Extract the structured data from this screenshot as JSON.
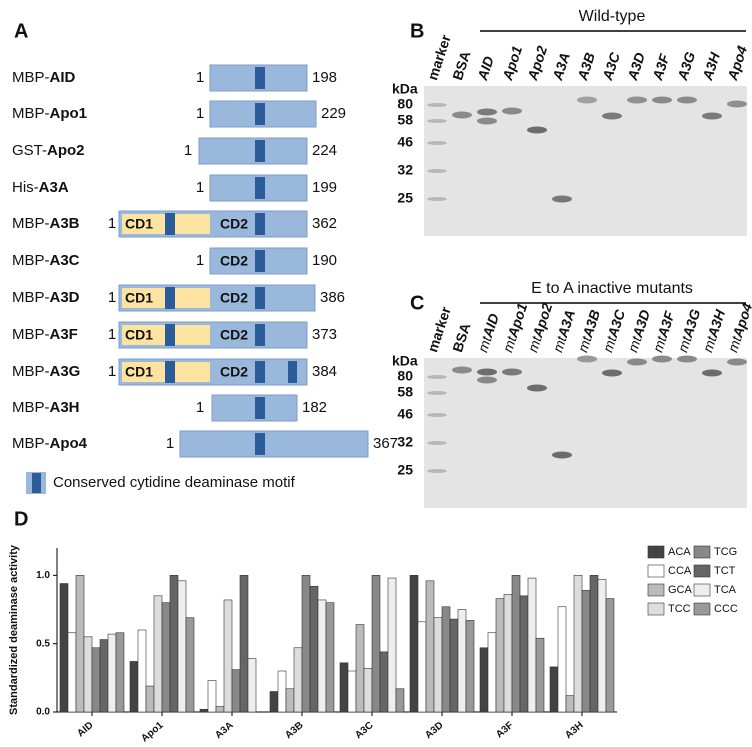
{
  "panel_a": {
    "label": "A",
    "constructs": [
      {
        "tag": "MBP-",
        "name": "AID",
        "start": 1,
        "end": 198,
        "domains": []
      },
      {
        "tag": "MBP-",
        "name": "Apo1",
        "start": 1,
        "end": 229,
        "domains": []
      },
      {
        "tag": "GST-",
        "name": "Apo2",
        "start": 1,
        "end": 224,
        "domains": []
      },
      {
        "tag": "His-",
        "name": "A3A",
        "start": 1,
        "end": 199,
        "domains": []
      },
      {
        "tag": "MBP-",
        "name": "A3B",
        "start": 1,
        "end": 362,
        "domains": [
          "CD1",
          "CD2"
        ]
      },
      {
        "tag": "MBP-",
        "name": "A3C",
        "start": 1,
        "end": 190,
        "domains": [
          "CD2"
        ]
      },
      {
        "tag": "MBP-",
        "name": "A3D",
        "start": 1,
        "end": 386,
        "domains": [
          "CD1",
          "CD2"
        ]
      },
      {
        "tag": "MBP-",
        "name": "A3F",
        "start": 1,
        "end": 373,
        "domains": [
          "CD1",
          "CD2"
        ]
      },
      {
        "tag": "MBP-",
        "name": "A3G",
        "start": 1,
        "end": 384,
        "domains": [
          "CD1",
          "CD2"
        ]
      },
      {
        "tag": "MBP-",
        "name": "A3H",
        "start": 1,
        "end": 182,
        "domains": []
      },
      {
        "tag": "MBP-",
        "name": "Apo4",
        "start": 1,
        "end": 367,
        "domains": []
      }
    ],
    "legend": "Conserved cytidine deaminase motif"
  },
  "panel_b": {
    "label": "B",
    "header": "Wild-type",
    "unit": "kDa",
    "markers": [
      80,
      58,
      46,
      32,
      25
    ],
    "lanes": [
      "marker",
      "BSA",
      "AID",
      "Apo1",
      "Apo2",
      "A3A",
      "A3B",
      "A3C",
      "A3D",
      "A3F",
      "A3G",
      "A3H",
      "Apo4"
    ]
  },
  "panel_c": {
    "label": "C",
    "header": "E to A inactive mutants",
    "unit": "kDa",
    "markers": [
      80,
      58,
      46,
      32,
      25
    ],
    "lanes": [
      "marker",
      "BSA",
      {
        "prefix": "mt",
        "name": "AID"
      },
      {
        "prefix": "mt",
        "name": "Apo1"
      },
      {
        "prefix": "mt",
        "name": "Apo2"
      },
      {
        "prefix": "mt",
        "name": "A3A"
      },
      {
        "prefix": "mt",
        "name": "A3B"
      },
      {
        "prefix": "mt",
        "name": "A3C"
      },
      {
        "prefix": "mt",
        "name": "A3D"
      },
      {
        "prefix": "mt",
        "name": "A3F"
      },
      {
        "prefix": "mt",
        "name": "A3G"
      },
      {
        "prefix": "mt",
        "name": "A3H"
      },
      {
        "prefix": "mt",
        "name": "Apo4"
      }
    ]
  },
  "chart_data": {
    "type": "bar",
    "label": "D",
    "ylabel": "Standardized deaminase activity",
    "categories": [
      "AID",
      "Apo1",
      "A3A",
      "A3B",
      "A3C",
      "A3D",
      "A3F",
      "A3H"
    ],
    "series": [
      {
        "name": "ACA",
        "color": "#444444",
        "values": [
          0.94,
          0.37,
          0.02,
          0.15,
          0.36,
          1.0,
          0.47,
          0.33
        ]
      },
      {
        "name": "CCA",
        "color": "#ffffff",
        "values": [
          0.58,
          0.6,
          0.23,
          0.3,
          0.3,
          0.66,
          0.58,
          0.77
        ]
      },
      {
        "name": "GCA",
        "color": "#bbbbbb",
        "values": [
          1.0,
          0.19,
          0.04,
          0.17,
          0.64,
          0.96,
          0.83,
          0.12
        ]
      },
      {
        "name": "TCC",
        "color": "#dddddd",
        "values": [
          0.55,
          0.85,
          0.82,
          0.47,
          0.32,
          0.69,
          0.86,
          1.0
        ]
      },
      {
        "name": "TCG",
        "color": "#888888",
        "values": [
          0.47,
          0.8,
          0.31,
          1.0,
          1.0,
          0.77,
          1.0,
          0.89
        ]
      },
      {
        "name": "TCT",
        "color": "#666666",
        "values": [
          0.53,
          1.0,
          1.0,
          0.92,
          0.44,
          0.68,
          0.85,
          1.0
        ]
      },
      {
        "name": "TCA",
        "color": "#eeeeee",
        "values": [
          0.57,
          0.96,
          0.39,
          0.82,
          0.98,
          0.75,
          0.98,
          0.97
        ]
      },
      {
        "name": "CCC",
        "color": "#999999",
        "values": [
          0.58,
          0.69,
          0.0,
          0.8,
          0.17,
          0.67,
          0.54,
          0.83
        ]
      }
    ],
    "ylim": [
      0,
      1.2
    ],
    "yticks": [
      {
        "value": 0,
        "label": "0.0"
      },
      {
        "value": 0.5,
        "label": "0.5"
      },
      {
        "value": 1,
        "label": "1.0"
      }
    ]
  }
}
